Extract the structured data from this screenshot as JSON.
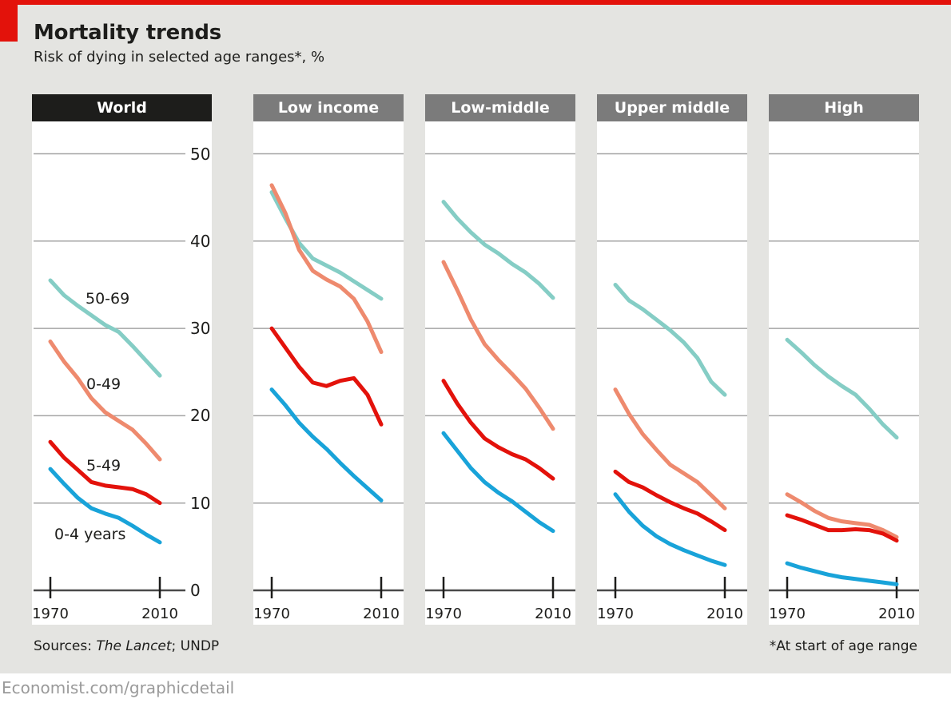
{
  "page": {
    "title": "Mortality trends",
    "subtitle": "Risk of dying in selected age ranges*, %",
    "sources_prefix": "Sources: ",
    "sources_italic": "The Lancet",
    "sources_suffix": "; UNDP",
    "footnote": "*At start of age range",
    "branding": "Economist.com/graphicdetail"
  },
  "colors": {
    "accent_red": "#e3120b",
    "background": "#e4e4e1",
    "panel_bg": "#ffffff",
    "header_world_bg": "#1d1d1b",
    "header_income_bg": "#7b7b7b",
    "header_text": "#ffffff",
    "gridline": "#a5a5a5",
    "axis_line": "#4a4a4a",
    "tick": "#1d1d1b",
    "text": "#1d1d1b",
    "branding_text": "#9a9a9a",
    "series": {
      "50-69": "#85cdc5",
      "0-49": "#ee8a6e",
      "5-49": "#e3120b",
      "0-4 years": "#19a3d9"
    }
  },
  "chart_data": {
    "type": "line",
    "x": [
      1970,
      1975,
      1980,
      1985,
      1990,
      1995,
      2000,
      2005,
      2010
    ],
    "x_tick_labels": [
      "1970",
      "2010"
    ],
    "ylim": [
      0,
      52
    ],
    "yticks": [
      0,
      10,
      20,
      30,
      40,
      50
    ],
    "grid": true,
    "legend_position": "inline-labels-first-panel",
    "series_order": [
      "50-69",
      "0-49",
      "5-49",
      "0-4 years"
    ],
    "panels": [
      {
        "label": "World",
        "header_style": "black",
        "show_y_axis_labels": true,
        "show_series_labels": true,
        "series": {
          "50-69": [
            35.5,
            33.8,
            32.6,
            31.5,
            30.4,
            29.6,
            28.0,
            26.3,
            24.6
          ],
          "0-49": [
            28.5,
            26.2,
            24.3,
            22.0,
            20.4,
            19.4,
            18.4,
            16.8,
            15.0
          ],
          "5-49": [
            17.0,
            15.2,
            13.8,
            12.4,
            12.0,
            11.8,
            11.6,
            11.0,
            10.0
          ],
          "0-4 years": [
            13.9,
            12.2,
            10.6,
            9.4,
            8.8,
            8.3,
            7.4,
            6.4,
            5.5
          ]
        }
      },
      {
        "label": "Low income",
        "header_style": "gray",
        "show_y_axis_labels": false,
        "show_series_labels": false,
        "series": {
          "50-69": [
            45.6,
            42.6,
            39.8,
            38.0,
            37.2,
            36.4,
            35.4,
            34.4,
            33.4
          ],
          "0-49": [
            46.4,
            43.2,
            39.0,
            36.6,
            35.6,
            34.8,
            33.4,
            30.8,
            27.3
          ],
          "5-49": [
            30.0,
            27.8,
            25.6,
            23.8,
            23.4,
            24.0,
            24.3,
            22.4,
            19.0
          ],
          "0-4 years": [
            23.0,
            21.2,
            19.2,
            17.6,
            16.2,
            14.6,
            13.1,
            11.7,
            10.3
          ]
        }
      },
      {
        "label": "Low-middle",
        "header_style": "gray",
        "show_y_axis_labels": false,
        "show_series_labels": false,
        "series": {
          "50-69": [
            44.5,
            42.6,
            41.0,
            39.6,
            38.6,
            37.4,
            36.4,
            35.1,
            33.5
          ],
          "0-49": [
            37.6,
            34.4,
            31.0,
            28.2,
            26.4,
            24.8,
            23.1,
            20.9,
            18.5
          ],
          "5-49": [
            24.0,
            21.4,
            19.2,
            17.4,
            16.4,
            15.6,
            15.0,
            14.0,
            12.8
          ],
          "0-4 years": [
            18.0,
            16.0,
            14.0,
            12.4,
            11.2,
            10.2,
            9.0,
            7.8,
            6.8
          ]
        }
      },
      {
        "label": "Upper middle",
        "header_style": "gray",
        "show_y_axis_labels": false,
        "show_series_labels": false,
        "series": {
          "50-69": [
            35.0,
            33.2,
            32.2,
            31.0,
            29.8,
            28.4,
            26.6,
            23.9,
            22.4
          ],
          "0-49": [
            23.0,
            20.2,
            17.9,
            16.1,
            14.4,
            13.4,
            12.4,
            10.9,
            9.4
          ],
          "5-49": [
            13.6,
            12.4,
            11.8,
            10.9,
            10.1,
            9.4,
            8.8,
            7.9,
            6.9
          ],
          "0-4 years": [
            11.0,
            9.0,
            7.4,
            6.2,
            5.3,
            4.6,
            4.0,
            3.4,
            2.9
          ]
        }
      },
      {
        "label": "High",
        "header_style": "gray",
        "show_y_axis_labels": false,
        "show_series_labels": false,
        "series": {
          "50-69": [
            28.7,
            27.3,
            25.8,
            24.5,
            23.4,
            22.4,
            20.8,
            19.0,
            17.5
          ],
          "0-49": [
            11.0,
            10.1,
            9.1,
            8.3,
            7.9,
            7.7,
            7.5,
            6.9,
            6.1
          ],
          "5-49": [
            8.6,
            8.1,
            7.5,
            6.9,
            6.9,
            7.0,
            6.9,
            6.5,
            5.7
          ],
          "0-4 years": [
            3.1,
            2.6,
            2.2,
            1.8,
            1.5,
            1.3,
            1.1,
            0.9,
            0.7
          ]
        }
      }
    ]
  }
}
